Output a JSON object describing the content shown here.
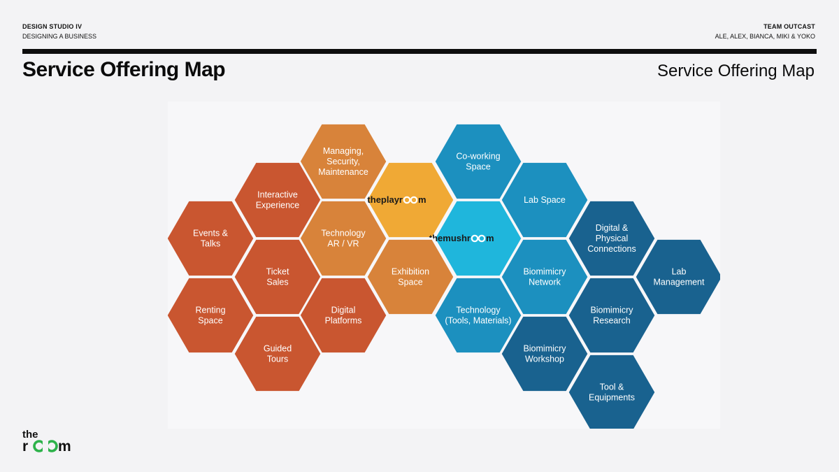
{
  "header": {
    "course": "DESIGN STUDIO IV",
    "subtitle": "DESIGNING A BUSINESS",
    "team": "TEAM OUTCAST",
    "members": "ALE, ALEX, BIANCA, MIKI & YOKO"
  },
  "page": {
    "title": "Service Offering Map",
    "title_right": "Service Offering Map"
  },
  "colors": {
    "red": "#c95630",
    "orange": "#d8833a",
    "yellow": "#f0a935",
    "teal_light": "#1fb6dc",
    "teal": "#1c90bf",
    "blue": "#19628f",
    "logo_text": "#1a1a1a",
    "brand_green": "#2db24a"
  },
  "hexes": [
    {
      "lines": [
        "Managing,",
        "Security,",
        "Maintenance"
      ],
      "color": "orange"
    },
    {
      "lines": [
        "Co-working",
        "Space"
      ],
      "color": "teal"
    },
    {
      "lines": [
        "Interactive",
        "Experience"
      ],
      "color": "red"
    },
    {
      "lines": [
        "theplayr",
        "m"
      ],
      "logo": true,
      "color": "yellow"
    },
    {
      "lines": [
        "Lab Space"
      ],
      "color": "teal"
    },
    {
      "lines": [
        "Events &",
        "Talks"
      ],
      "color": "red"
    },
    {
      "lines": [
        "Technology",
        "AR / VR"
      ],
      "color": "orange"
    },
    {
      "lines": [
        "themushr",
        "m"
      ],
      "logo": true,
      "color": "teal_light"
    },
    {
      "lines": [
        "Digital &",
        "Physical",
        "Connections"
      ],
      "color": "blue"
    },
    {
      "lines": [
        "Ticket",
        "Sales"
      ],
      "color": "red"
    },
    {
      "lines": [
        "Exhibition",
        "Space"
      ],
      "color": "orange"
    },
    {
      "lines": [
        "Biomimicry",
        "Network"
      ],
      "color": "teal"
    },
    {
      "lines": [
        "Lab",
        "Management"
      ],
      "color": "blue"
    },
    {
      "lines": [
        "Renting",
        "Space"
      ],
      "color": "red"
    },
    {
      "lines": [
        "Digital",
        "Platforms"
      ],
      "color": "red"
    },
    {
      "lines": [
        "Technology",
        "(Tools, Materials)"
      ],
      "color": "teal"
    },
    {
      "lines": [
        "Biomimicry",
        "Research"
      ],
      "color": "blue"
    },
    {
      "lines": [
        "Guided",
        "Tours"
      ],
      "color": "red"
    },
    {
      "lines": [
        "Biomimicry",
        "Workshop"
      ],
      "color": "blue"
    },
    {
      "lines": [
        "Tool &",
        "Equipments"
      ],
      "color": "blue"
    }
  ],
  "brand": {
    "line1": "the",
    "line2a": "r",
    "line2b": "m"
  }
}
